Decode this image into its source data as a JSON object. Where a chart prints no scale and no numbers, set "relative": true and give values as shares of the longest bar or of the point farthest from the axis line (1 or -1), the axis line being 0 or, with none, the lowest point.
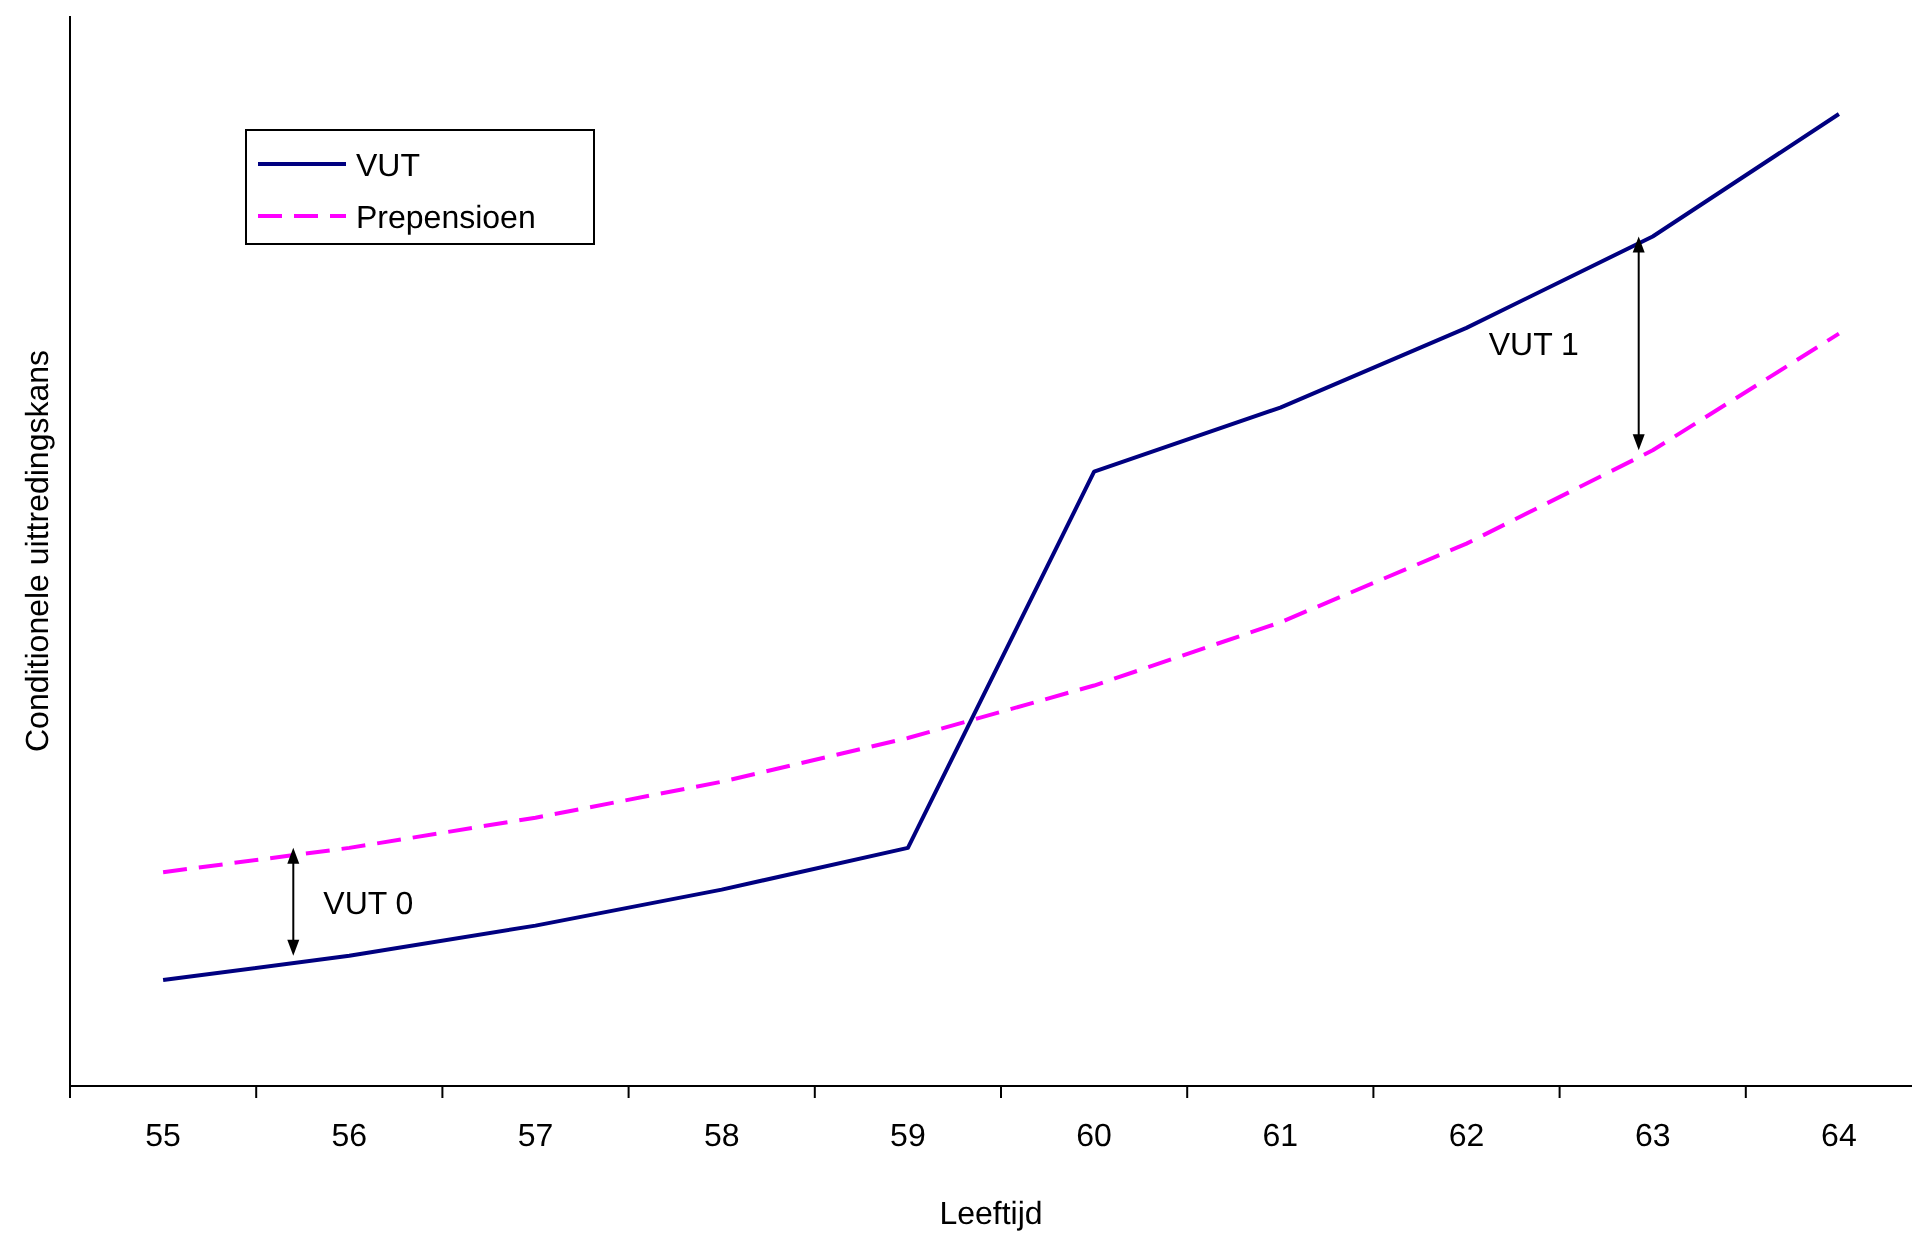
{
  "chart_data": {
    "type": "line",
    "relative": true,
    "xlabel": "Leeftijd",
    "ylabel": "Conditionele uittredingskans",
    "categories": [
      "55",
      "56",
      "57",
      "58",
      "59",
      "60",
      "61",
      "62",
      "63",
      "64"
    ],
    "series": [
      {
        "name": "VUT",
        "color": "#000080",
        "line_style": "solid",
        "values": [
          0.109,
          0.134,
          0.165,
          0.202,
          0.245,
          0.632,
          0.698,
          0.78,
          0.874,
          1
        ]
      },
      {
        "name": "Prepensioen",
        "color": "#ff00ff",
        "line_style": "dashed",
        "values": [
          0.22,
          0.245,
          0.276,
          0.313,
          0.358,
          0.412,
          0.477,
          0.558,
          0.654,
          0.774
        ]
      }
    ],
    "annotations": [
      "VUT 0",
      "VUT 1"
    ],
    "legend": "top left",
    "marker": "none"
  }
}
